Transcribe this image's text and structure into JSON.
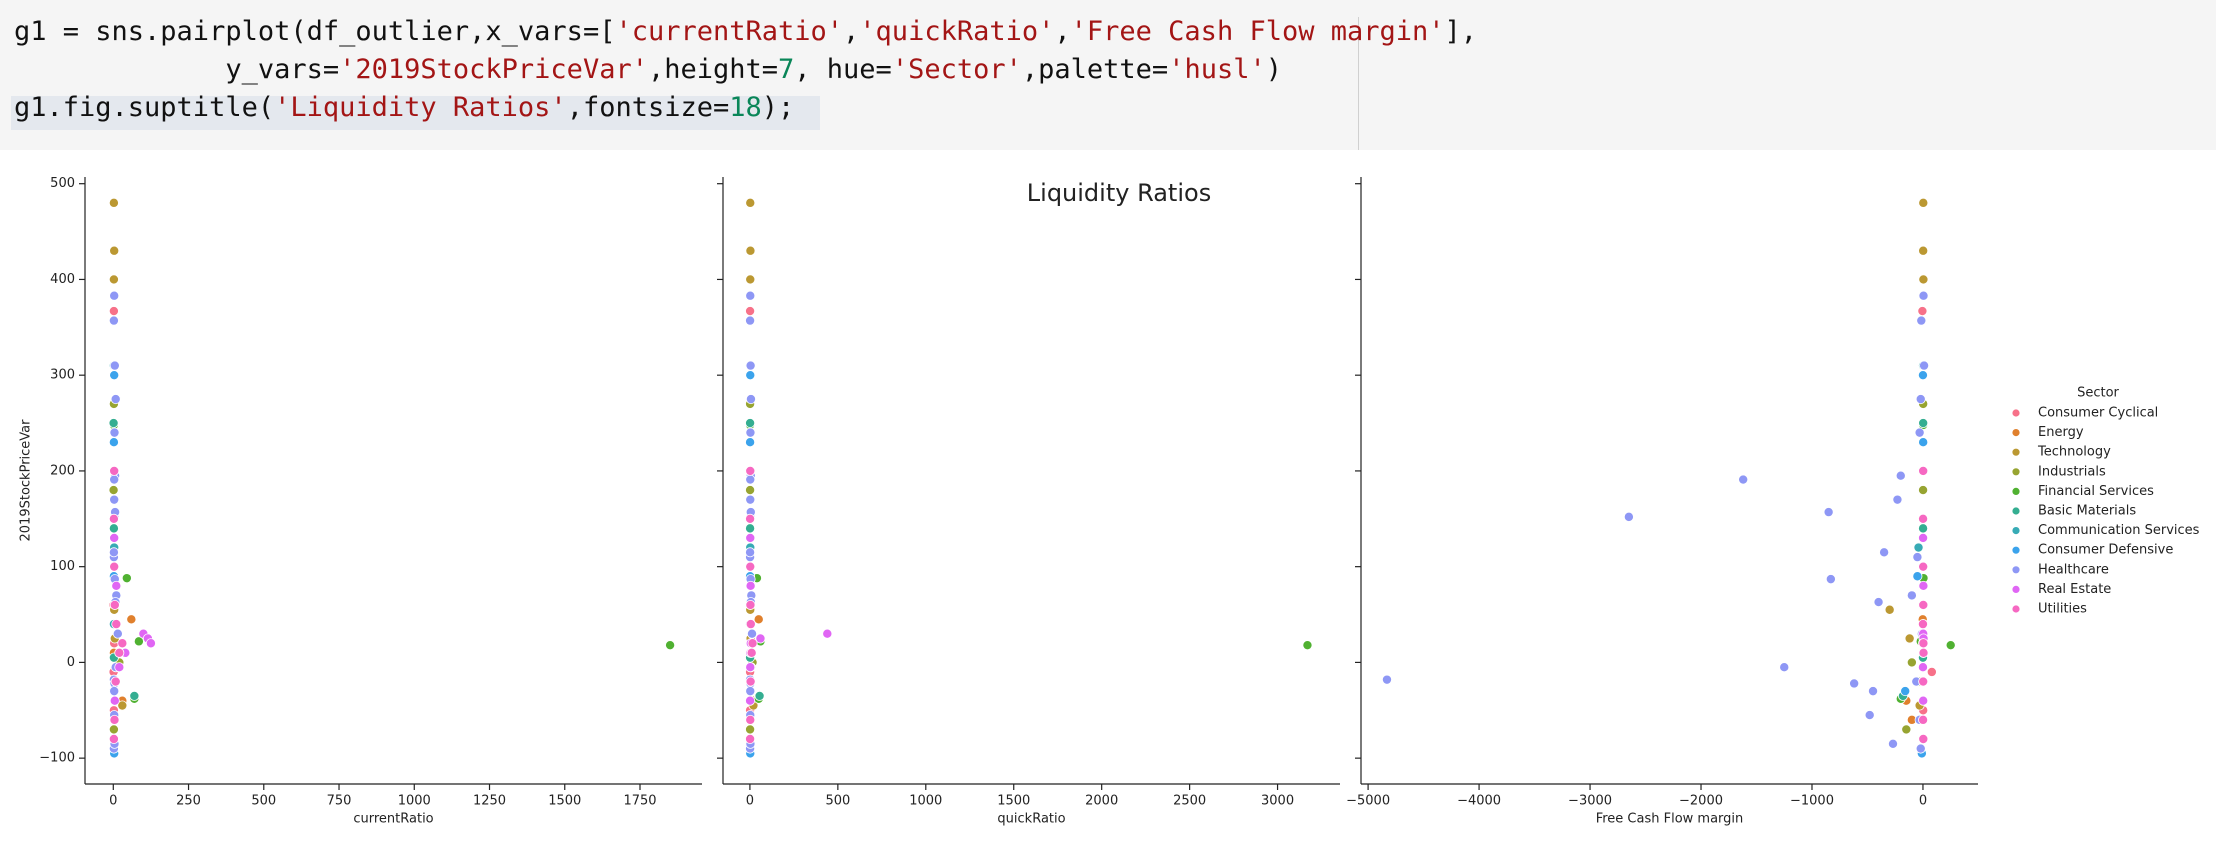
{
  "code": {
    "lines": [
      [
        "g1 = sns.pairplot(df_outlier,x_vars=[",
        "'currentRatio'",
        ",",
        "'quickRatio'",
        ",",
        "'Free Cash Flow margin'",
        "],"
      ],
      [
        "             y_vars=",
        "'2019StockPriceVar'",
        ",height=",
        "7",
        ", hue=",
        "'Sector'",
        ",palette=",
        "'husl'",
        ")"
      ],
      [
        "g1.fig.suptitle(",
        "'Liquidity Ratios'",
        ",fontsize=",
        "18",
        ");"
      ]
    ]
  },
  "chart_data": [
    {
      "type": "scatter",
      "xlabel": "currentRatio",
      "ylabel": "2019StockPriceVar",
      "xlim": [
        -94,
        1956
      ],
      "ylim": [
        -127,
        507
      ],
      "xticks": [
        0,
        250,
        500,
        750,
        1000,
        1250,
        1500,
        1750
      ],
      "yticks": [
        {
          "value": -100,
          "label": "−100"
        },
        0,
        100,
        200,
        300,
        400,
        500
      ],
      "series": [
        {
          "x": [
            2,
            1,
            3,
            1,
            2,
            1,
            1
          ],
          "values": [
            367,
            150,
            20,
            -10,
            -50,
            60,
            -80
          ]
        },
        {
          "x": [
            60,
            30,
            2,
            1
          ],
          "values": [
            45,
            -40,
            10,
            -60
          ]
        },
        {
          "x": [
            2,
            3,
            2,
            4,
            5,
            3,
            30
          ],
          "values": [
            480,
            430,
            400,
            200,
            25,
            55,
            -45
          ]
        },
        {
          "x": [
            2,
            1,
            20,
            3,
            2
          ],
          "values": [
            270,
            180,
            0,
            -20,
            -70
          ]
        },
        {
          "x": [
            45,
            1850,
            2,
            85,
            70
          ],
          "values": [
            88,
            18,
            248,
            22,
            -38
          ]
        },
        {
          "x": [
            1,
            2,
            70,
            2
          ],
          "values": [
            250,
            140,
            -35,
            5
          ]
        },
        {
          "x": [
            2,
            3,
            2
          ],
          "values": [
            310,
            120,
            40
          ]
        },
        {
          "x": [
            3,
            2,
            2,
            1,
            3
          ],
          "values": [
            300,
            230,
            90,
            -30,
            -95
          ]
        },
        {
          "x": [
            3,
            2,
            5,
            8,
            4,
            6,
            3,
            2,
            10,
            15,
            5,
            3,
            2,
            4,
            3,
            6,
            5,
            2,
            8,
            4,
            3,
            7,
            2,
            3,
            4
          ],
          "values": [
            383,
            357,
            310,
            275,
            240,
            195,
            170,
            110,
            70,
            30,
            -20,
            -60,
            -90,
            152,
            191,
            157,
            87,
            -18,
            -5,
            -22,
            -30,
            63,
            115,
            -55,
            -85
          ]
        },
        {
          "x": [
            100,
            115,
            125,
            40,
            20,
            5,
            10,
            3
          ],
          "values": [
            30,
            25,
            20,
            10,
            -5,
            -40,
            80,
            130
          ]
        },
        {
          "x": [
            2,
            3,
            5,
            10,
            20,
            8,
            4,
            2,
            3,
            30
          ],
          "values": [
            150,
            100,
            60,
            40,
            10,
            -20,
            -60,
            -80,
            200,
            20
          ]
        }
      ]
    },
    {
      "type": "scatter",
      "title": "Liquidity Ratios",
      "xlabel": "quickRatio",
      "xlim": [
        -153,
        3355
      ],
      "xticks": [
        0,
        500,
        1000,
        1500,
        2000,
        2500,
        3000
      ],
      "series": [
        {
          "x": [
            1,
            1,
            2,
            1,
            1,
            1,
            1
          ],
          "values": [
            367,
            150,
            20,
            -10,
            -50,
            60,
            -80
          ]
        },
        {
          "x": [
            50,
            20,
            1,
            1
          ],
          "values": [
            45,
            -40,
            10,
            -60
          ]
        },
        {
          "x": [
            2,
            3,
            2,
            3,
            4,
            2,
            20
          ],
          "values": [
            480,
            430,
            400,
            200,
            25,
            55,
            -45
          ]
        },
        {
          "x": [
            1,
            1,
            15,
            2,
            1
          ],
          "values": [
            270,
            180,
            0,
            -20,
            -70
          ]
        },
        {
          "x": [
            40,
            3170,
            1,
            60,
            50
          ],
          "values": [
            88,
            18,
            248,
            22,
            -38
          ]
        },
        {
          "x": [
            1,
            1,
            55,
            1
          ],
          "values": [
            250,
            140,
            -35,
            5
          ]
        },
        {
          "x": [
            1,
            2,
            1
          ],
          "values": [
            310,
            120,
            40
          ]
        },
        {
          "x": [
            2,
            1,
            1,
            1,
            2
          ],
          "values": [
            300,
            230,
            90,
            -30,
            -95
          ]
        },
        {
          "x": [
            2,
            1,
            4,
            6,
            3,
            5,
            2,
            1,
            8,
            12,
            4,
            2,
            1,
            3,
            2,
            5,
            4,
            1,
            6,
            3,
            2,
            5,
            1,
            2,
            3
          ],
          "values": [
            383,
            357,
            310,
            275,
            240,
            195,
            170,
            110,
            70,
            30,
            -20,
            -60,
            -90,
            152,
            191,
            157,
            87,
            -18,
            -5,
            -22,
            -30,
            63,
            115,
            -55,
            -85
          ]
        },
        {
          "x": [
            440,
            60,
            5,
            3,
            2,
            1,
            4,
            2
          ],
          "values": [
            30,
            25,
            20,
            10,
            -5,
            -40,
            80,
            130
          ]
        },
        {
          "x": [
            1,
            2,
            3,
            5,
            10,
            4,
            2,
            1,
            2,
            15
          ],
          "values": [
            150,
            100,
            60,
            40,
            10,
            -20,
            -60,
            -80,
            200,
            20
          ]
        }
      ]
    },
    {
      "type": "scatter",
      "xlabel": "Free Cash Flow margin",
      "legend_title": "Sector",
      "xlim": [
        -5064,
        496
      ],
      "xticks": [
        {
          "value": -5000,
          "label": "−5000"
        },
        {
          "value": -4000,
          "label": "−4000"
        },
        {
          "value": -3000,
          "label": "−3000"
        },
        {
          "value": -2000,
          "label": "−2000"
        },
        {
          "value": -1000,
          "label": "−1000"
        },
        0
      ],
      "series": [
        {
          "name": "Consumer Cyclical",
          "color": "#f77189",
          "x": [
            -5,
            3,
            0,
            80,
            2,
            -2,
            1
          ],
          "values": [
            367,
            150,
            20,
            -10,
            -50,
            60,
            -80
          ]
        },
        {
          "name": "Energy",
          "color": "#e0802d",
          "x": [
            -2,
            -150,
            1,
            -100
          ],
          "values": [
            45,
            -40,
            10,
            -60
          ]
        },
        {
          "name": "Technology",
          "color": "#bb9832",
          "x": [
            3,
            2,
            4,
            5,
            -120,
            -300,
            -30
          ],
          "values": [
            480,
            430,
            400,
            200,
            25,
            55,
            -45
          ]
        },
        {
          "name": "Industrials",
          "color": "#97a431",
          "x": [
            2,
            1,
            -100,
            -30,
            -150
          ],
          "values": [
            270,
            180,
            0,
            -20,
            -70
          ]
        },
        {
          "name": "Financial Services",
          "color": "#50b131",
          "x": [
            5,
            250,
            2,
            -20,
            -200
          ],
          "values": [
            88,
            18,
            248,
            22,
            -38
          ]
        },
        {
          "name": "Basic Materials",
          "color": "#34ae91",
          "x": [
            2,
            1,
            -180,
            0
          ],
          "values": [
            250,
            140,
            -35,
            5
          ]
        },
        {
          "name": "Communication Services",
          "color": "#37abb5",
          "x": [
            1,
            -40,
            3
          ],
          "values": [
            310,
            120,
            40
          ]
        },
        {
          "name": "Consumer Defensive",
          "color": "#3ba3ec",
          "x": [
            0,
            2,
            -50,
            -160,
            -10
          ],
          "values": [
            300,
            230,
            90,
            -30,
            -95
          ]
        },
        {
          "name": "Healthcare",
          "color": "#8e97f5",
          "x": [
            5,
            -15,
            10,
            -20,
            -30,
            -200,
            -230,
            -50,
            -100,
            -10,
            -60,
            -30,
            -20,
            -2650,
            -1620,
            -850,
            -830,
            -4830,
            -1250,
            -620,
            -450,
            -400,
            -350,
            -480,
            -270
          ],
          "values": [
            383,
            357,
            310,
            275,
            240,
            195,
            170,
            110,
            70,
            30,
            -20,
            -60,
            -90,
            152,
            191,
            157,
            87,
            -18,
            -5,
            -22,
            -30,
            63,
            115,
            -55,
            -85
          ]
        },
        {
          "name": "Real Estate",
          "color": "#e066f4",
          "x": [
            2,
            5,
            1,
            3,
            0,
            2,
            4,
            1
          ],
          "values": [
            30,
            25,
            20,
            10,
            -5,
            -40,
            80,
            130
          ]
        },
        {
          "name": "Utilities",
          "color": "#f668c2",
          "x": [
            1,
            2,
            3,
            0,
            5,
            2,
            1,
            3,
            2,
            4
          ],
          "values": [
            150,
            100,
            60,
            40,
            10,
            -20,
            -60,
            -80,
            200,
            20
          ]
        }
      ]
    }
  ]
}
